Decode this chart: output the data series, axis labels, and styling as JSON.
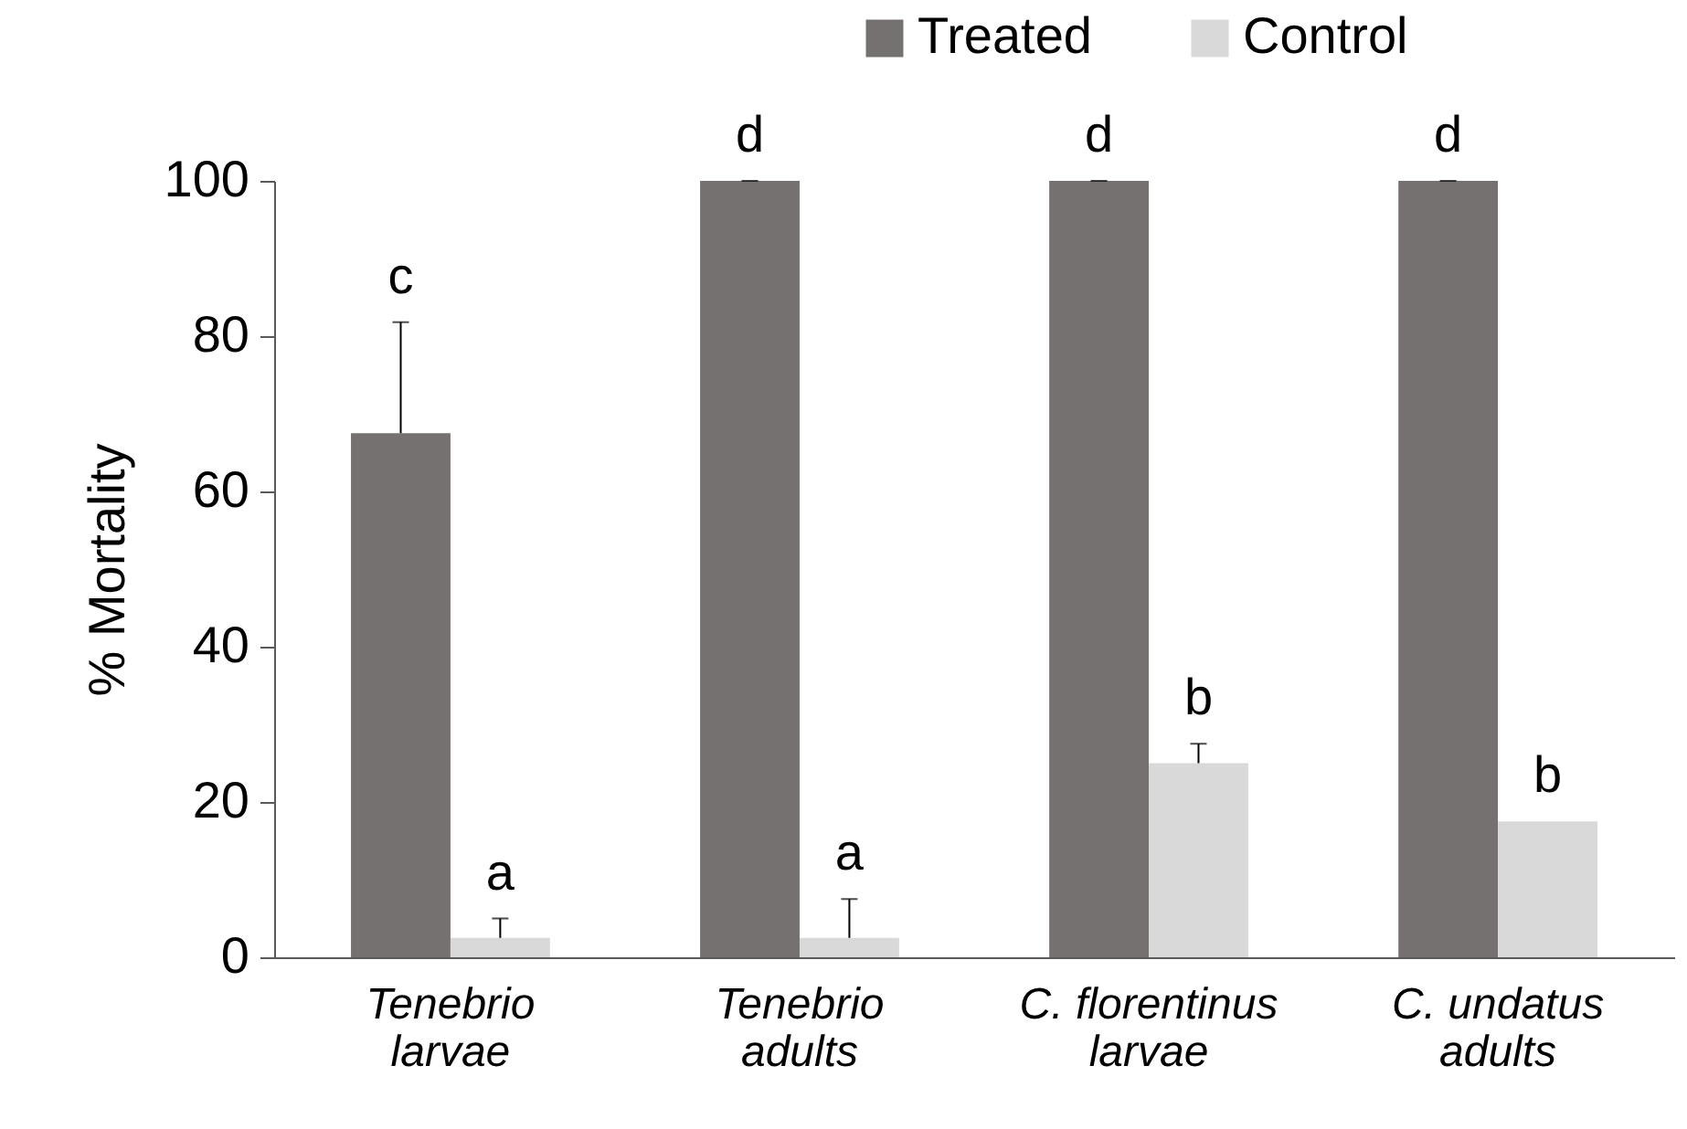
{
  "chart_data": {
    "type": "bar",
    "categories": [
      "Tenebrio\nlarvae",
      "Tenebrio\nadults",
      "C. florentinus\nlarvae",
      "C. undatus\nadults"
    ],
    "ylabel": "% Mortality",
    "ylim": [
      0,
      100
    ],
    "yticks": [
      0,
      20,
      40,
      60,
      80,
      100
    ],
    "grid": false,
    "legend": "top right",
    "series": [
      {
        "name": "Treated",
        "color": "#767171",
        "values": [
          67.5,
          100,
          100,
          100
        ],
        "errors": [
          [
            67.5,
            81.8
          ],
          [
            100,
            100
          ],
          [
            100,
            100
          ],
          [
            100,
            100
          ]
        ],
        "value_labels": [
          "c",
          "d",
          "d",
          "d"
        ]
      },
      {
        "name": "Control",
        "color": "#d9d9d9",
        "values": [
          2.5,
          2.5,
          25,
          17.5
        ],
        "errors": [
          [
            2.5,
            5
          ],
          [
            2.5,
            7.5
          ],
          [
            25,
            27.5
          ],
          null
        ],
        "value_labels": [
          "a",
          "a",
          "b",
          "b"
        ]
      }
    ]
  }
}
